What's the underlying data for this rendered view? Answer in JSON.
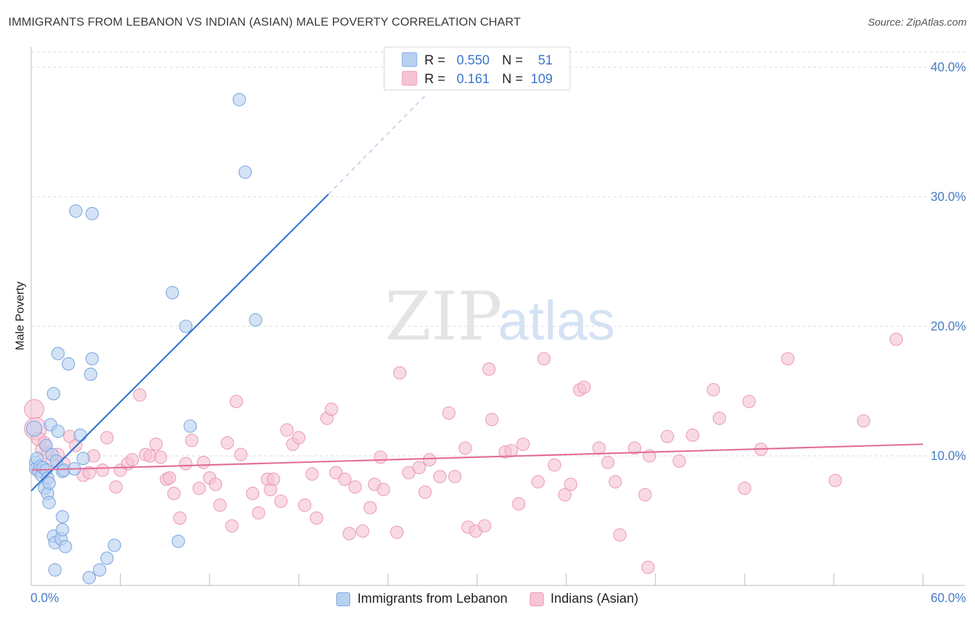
{
  "title": "IMMIGRANTS FROM LEBANON VS INDIAN (ASIAN) MALE POVERTY CORRELATION CHART",
  "source": "Source: ZipAtlas.com",
  "watermark": {
    "zip": "ZIP",
    "atlas": "atlas"
  },
  "legend": {
    "rows": [
      {
        "r_label": "R =",
        "r_value": "0.550",
        "n_label": "N =",
        "n_value": "51"
      },
      {
        "r_label": "R =",
        "r_value": "0.161",
        "n_label": "N =",
        "n_value": "109"
      }
    ]
  },
  "bottom_legend": [
    "Immigrants from Lebanon",
    "Indians (Asian)"
  ],
  "colors": {
    "blue_fill": "#b9d0f1",
    "blue_stroke": "#7aa7e0",
    "blue_line": "#2f74d0",
    "pink_fill": "#f6c4d4",
    "pink_stroke": "#ec9bb6",
    "pink_line": "#e46d97",
    "tick_text": "#4a7cc9",
    "grid": "#d9d9d9"
  },
  "chart_data": {
    "type": "scatter",
    "title": "IMMIGRANTS FROM LEBANON VS INDIAN (ASIAN) MALE POVERTY CORRELATION CHART",
    "xlabel": "",
    "ylabel": "Male Poverty",
    "xlim": [
      0,
      60
    ],
    "ylim": [
      0,
      40
    ],
    "x_tick_labels": [
      "0.0%",
      "60.0%"
    ],
    "y_ticks": [
      10,
      20,
      30,
      40
    ],
    "y_tick_labels": [
      "10.0%",
      "20.0%",
      "30.0%",
      "40.0%"
    ],
    "grid": true,
    "legend_position": "top-center",
    "series": [
      {
        "name": "Immigrants from Lebanon",
        "r": 0.55,
        "n": 51,
        "points": [
          [
            0.2,
            12.1,
            11
          ],
          [
            0.3,
            9.5,
            9
          ],
          [
            0.3,
            9.0,
            9
          ],
          [
            0.4,
            9.8,
            9
          ],
          [
            0.5,
            8.8,
            9
          ],
          [
            0.6,
            9.2,
            9
          ],
          [
            0.7,
            8.5,
            9
          ],
          [
            0.8,
            9.1,
            9
          ],
          [
            0.9,
            7.5,
            9
          ],
          [
            1.0,
            10.8,
            9
          ],
          [
            1.0,
            8.9,
            9
          ],
          [
            1.1,
            8.3,
            9
          ],
          [
            1.1,
            7.1,
            9
          ],
          [
            1.2,
            7.9,
            9
          ],
          [
            1.2,
            6.4,
            9
          ],
          [
            1.3,
            12.4,
            9
          ],
          [
            1.4,
            10.1,
            9
          ],
          [
            1.5,
            14.8,
            9
          ],
          [
            1.5,
            3.8,
            9
          ],
          [
            1.6,
            3.3,
            9
          ],
          [
            1.6,
            1.2,
            9
          ],
          [
            1.7,
            9.6,
            9
          ],
          [
            1.8,
            17.9,
            9
          ],
          [
            1.8,
            11.9,
            9
          ],
          [
            2.0,
            3.6,
            9
          ],
          [
            2.1,
            8.8,
            9
          ],
          [
            2.1,
            5.3,
            9
          ],
          [
            2.1,
            4.3,
            9
          ],
          [
            2.2,
            8.9,
            9
          ],
          [
            2.3,
            3.0,
            9
          ],
          [
            2.5,
            17.1,
            9
          ],
          [
            2.9,
            9.0,
            9
          ],
          [
            3.0,
            28.9,
            9
          ],
          [
            3.3,
            11.6,
            9
          ],
          [
            3.5,
            9.8,
            9
          ],
          [
            3.9,
            0.6,
            9
          ],
          [
            4.0,
            16.3,
            9
          ],
          [
            4.1,
            28.7,
            9
          ],
          [
            4.1,
            17.5,
            9
          ],
          [
            4.6,
            1.2,
            9
          ],
          [
            5.1,
            2.1,
            9
          ],
          [
            5.6,
            3.1,
            9
          ],
          [
            9.5,
            22.6,
            9
          ],
          [
            9.9,
            3.4,
            9
          ],
          [
            10.4,
            20.0,
            9
          ],
          [
            10.7,
            12.3,
            9
          ],
          [
            14.0,
            37.5,
            9
          ],
          [
            14.4,
            31.9,
            9
          ],
          [
            15.1,
            20.5,
            9
          ]
        ],
        "trendline": {
          "x_start": 0.0,
          "y_start": 7.3,
          "x_solid_end": 20.0,
          "y_solid_end": 30.2,
          "x_dash_end": 26.5,
          "y_dash_end": 37.8
        }
      },
      {
        "name": "Indians (Asian)",
        "r": 0.161,
        "n": 109,
        "points": [
          [
            0.2,
            13.6,
            14
          ],
          [
            0.3,
            12.1,
            16
          ],
          [
            0.5,
            11.3,
            10
          ],
          [
            0.7,
            10.5,
            9
          ],
          [
            0.9,
            11.0,
            9
          ],
          [
            1.1,
            10.2,
            9
          ],
          [
            1.4,
            9.6,
            9
          ],
          [
            1.8,
            10.1,
            9
          ],
          [
            2.2,
            9.4,
            9
          ],
          [
            2.6,
            11.5,
            9
          ],
          [
            3.0,
            10.8,
            9
          ],
          [
            3.5,
            8.5,
            9
          ],
          [
            3.9,
            8.7,
            9
          ],
          [
            4.2,
            10.0,
            9
          ],
          [
            4.8,
            8.9,
            9
          ],
          [
            5.1,
            11.4,
            9
          ],
          [
            5.7,
            7.6,
            9
          ],
          [
            6.0,
            8.9,
            9
          ],
          [
            6.5,
            9.4,
            9
          ],
          [
            6.8,
            9.7,
            9
          ],
          [
            7.3,
            14.7,
            9
          ],
          [
            7.7,
            10.1,
            9
          ],
          [
            8.0,
            10.0,
            9
          ],
          [
            8.4,
            10.9,
            9
          ],
          [
            8.7,
            9.9,
            9
          ],
          [
            9.1,
            8.2,
            9
          ],
          [
            9.3,
            8.3,
            9
          ],
          [
            9.6,
            7.1,
            9
          ],
          [
            10.0,
            5.2,
            9
          ],
          [
            10.4,
            9.4,
            9
          ],
          [
            10.8,
            11.2,
            9
          ],
          [
            11.3,
            7.5,
            9
          ],
          [
            11.6,
            9.5,
            9
          ],
          [
            12.0,
            8.3,
            9
          ],
          [
            12.4,
            7.8,
            9
          ],
          [
            12.7,
            6.2,
            9
          ],
          [
            13.2,
            11.0,
            9
          ],
          [
            13.5,
            4.6,
            9
          ],
          [
            13.8,
            14.2,
            9
          ],
          [
            14.1,
            10.1,
            9
          ],
          [
            14.9,
            7.1,
            9
          ],
          [
            15.3,
            5.6,
            9
          ],
          [
            15.9,
            8.2,
            9
          ],
          [
            16.1,
            7.4,
            9
          ],
          [
            16.3,
            8.2,
            9
          ],
          [
            16.8,
            6.5,
            9
          ],
          [
            17.2,
            12.0,
            9
          ],
          [
            17.6,
            10.9,
            9
          ],
          [
            18.0,
            11.4,
            9
          ],
          [
            18.4,
            6.2,
            9
          ],
          [
            18.9,
            8.6,
            9
          ],
          [
            19.2,
            5.2,
            9
          ],
          [
            19.9,
            12.9,
            9
          ],
          [
            20.2,
            13.6,
            9
          ],
          [
            20.5,
            8.7,
            9
          ],
          [
            21.1,
            8.2,
            9
          ],
          [
            21.4,
            4.0,
            9
          ],
          [
            21.8,
            7.6,
            9
          ],
          [
            22.3,
            4.2,
            9
          ],
          [
            22.8,
            6.0,
            9
          ],
          [
            23.1,
            7.8,
            9
          ],
          [
            23.5,
            9.9,
            9
          ],
          [
            23.7,
            7.4,
            9
          ],
          [
            24.6,
            4.1,
            9
          ],
          [
            24.8,
            16.4,
            9
          ],
          [
            25.4,
            8.7,
            9
          ],
          [
            26.1,
            9.1,
            9
          ],
          [
            26.5,
            7.2,
            9
          ],
          [
            26.8,
            9.7,
            9
          ],
          [
            27.5,
            8.4,
            9
          ],
          [
            28.1,
            13.3,
            9
          ],
          [
            28.5,
            8.4,
            9
          ],
          [
            29.2,
            10.6,
            9
          ],
          [
            29.4,
            4.5,
            9
          ],
          [
            29.9,
            4.2,
            9
          ],
          [
            30.5,
            4.6,
            9
          ],
          [
            30.8,
            16.7,
            9
          ],
          [
            31.0,
            12.8,
            9
          ],
          [
            31.9,
            10.3,
            9
          ],
          [
            32.3,
            10.4,
            9
          ],
          [
            32.8,
            6.3,
            9
          ],
          [
            33.1,
            10.9,
            9
          ],
          [
            34.1,
            8.0,
            9
          ],
          [
            34.5,
            17.5,
            9
          ],
          [
            35.2,
            9.3,
            9
          ],
          [
            35.9,
            7.0,
            9
          ],
          [
            36.3,
            7.8,
            9
          ],
          [
            36.9,
            15.1,
            9
          ],
          [
            37.2,
            15.3,
            9
          ],
          [
            38.2,
            10.6,
            9
          ],
          [
            38.8,
            9.5,
            9
          ],
          [
            39.3,
            8.0,
            9
          ],
          [
            39.6,
            3.9,
            9
          ],
          [
            40.6,
            10.6,
            9
          ],
          [
            41.3,
            7.0,
            9
          ],
          [
            41.5,
            1.4,
            9
          ],
          [
            41.6,
            10.0,
            9
          ],
          [
            42.8,
            11.5,
            9
          ],
          [
            43.6,
            9.6,
            9
          ],
          [
            44.5,
            11.6,
            9
          ],
          [
            45.9,
            15.1,
            9
          ],
          [
            46.3,
            12.9,
            9
          ],
          [
            48.0,
            7.5,
            9
          ],
          [
            48.3,
            14.2,
            9
          ],
          [
            49.1,
            10.5,
            9
          ],
          [
            50.9,
            17.5,
            9
          ],
          [
            54.1,
            8.1,
            9
          ],
          [
            56.0,
            12.7,
            9
          ],
          [
            58.2,
            19.0,
            9
          ]
        ],
        "trendline": {
          "x_start": 0.0,
          "y_start": 8.9,
          "x_solid_end": 60.0,
          "y_solid_end": 10.9
        }
      }
    ]
  }
}
